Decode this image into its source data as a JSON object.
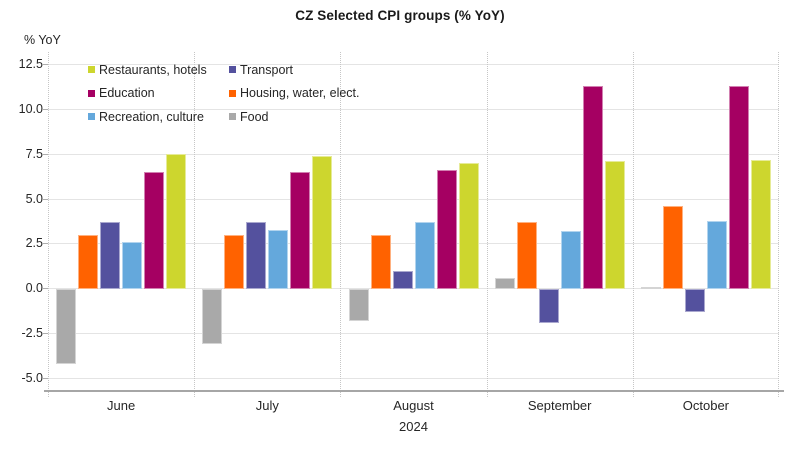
{
  "title": "CZ Selected CPI groups (% YoY)",
  "chart_data": {
    "type": "bar",
    "title": "CZ Selected CPI groups (% YoY)",
    "ylabel": "% YoY",
    "xlabel": "",
    "x_secondary_label": "2024",
    "categories": [
      "June",
      "July",
      "August",
      "September",
      "October"
    ],
    "ylim": [
      -5.7,
      13.2
    ],
    "yticks": [
      12.5,
      10.0,
      7.5,
      5.0,
      2.5,
      0.0,
      -2.5,
      -5.0
    ],
    "grid": true,
    "legend_position": "top-left-inside",
    "series": [
      {
        "name": "Food",
        "color": "#a9a9a9",
        "values": [
          -4.2,
          -3.1,
          -1.8,
          0.6,
          0.1
        ]
      },
      {
        "name": "Housing, water, elect.",
        "color": "#ff6200",
        "values": [
          3.0,
          3.0,
          3.0,
          3.7,
          4.6
        ]
      },
      {
        "name": "Transport",
        "color": "#54519e",
        "values": [
          3.7,
          3.7,
          1.0,
          -1.9,
          -1.3
        ]
      },
      {
        "name": "Recreation, culture",
        "color": "#64a8dc",
        "values": [
          2.6,
          3.3,
          3.7,
          3.2,
          3.8
        ]
      },
      {
        "name": "Education",
        "color": "#a50062",
        "values": [
          6.5,
          6.5,
          6.6,
          11.3,
          11.3
        ]
      },
      {
        "name": "Restaurants, hotels",
        "color": "#cdd62e",
        "values": [
          7.5,
          7.4,
          7.0,
          7.1,
          7.2
        ]
      }
    ],
    "legend_order": [
      "Restaurants, hotels",
      "Transport",
      "Education",
      "Housing, water, elect.",
      "Recreation, culture",
      "Food"
    ],
    "colors": {
      "gridline": "#e4e4e4",
      "axis_line": "#a6a6a6",
      "text": "#262626"
    }
  }
}
